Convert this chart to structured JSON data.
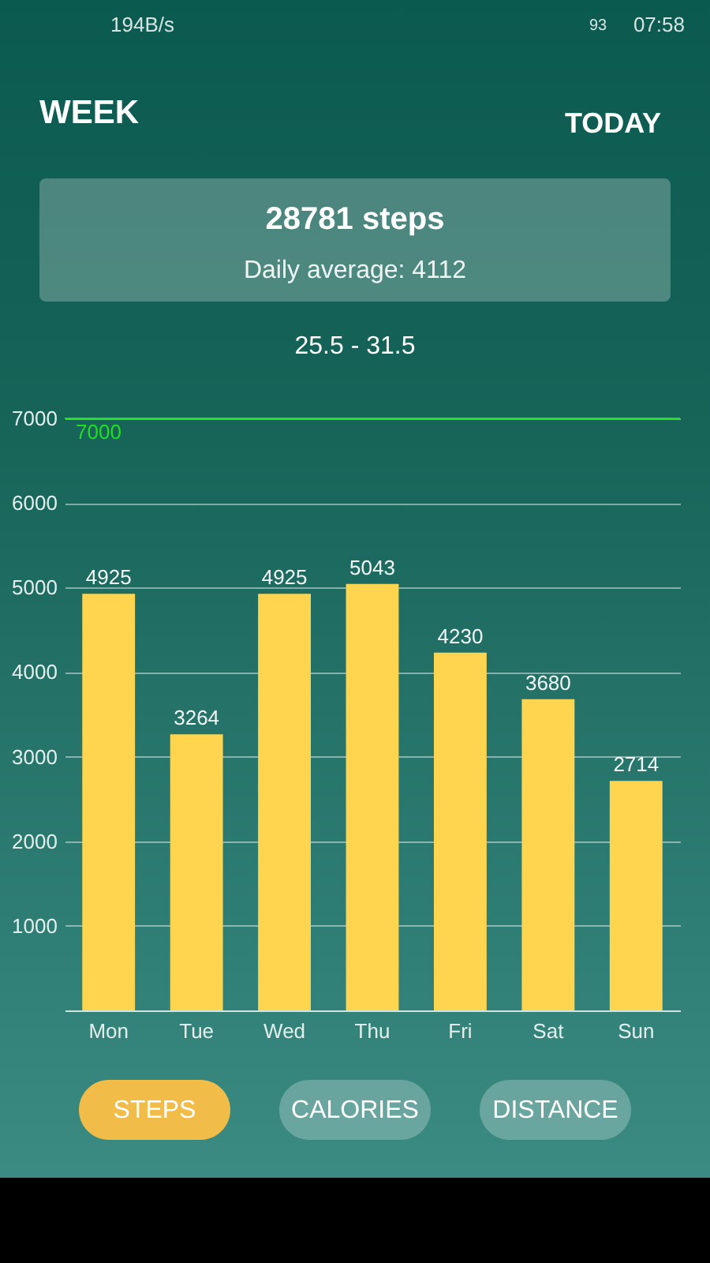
{
  "chart_data": {
    "type": "bar",
    "title": "WEEK",
    "categories": [
      "Mon",
      "Tue",
      "Wed",
      "Thu",
      "Fri",
      "Sat",
      "Sun"
    ],
    "values": [
      4925,
      3264,
      4925,
      5043,
      4230,
      3680,
      2714
    ],
    "color": "#ffd54f",
    "ylim": [
      0,
      7000
    ],
    "yticks": [
      1000,
      2000,
      3000,
      4000,
      5000,
      6000,
      7000
    ],
    "grid": "y",
    "data_labels": true,
    "ref_lines": [
      {
        "axis": "y",
        "value": 7000,
        "label": "7000",
        "color": "#22dd22"
      }
    ],
    "annotations": [
      "194B/s",
      "93",
      "07:58",
      "TODAY",
      "28781 steps",
      "Daily average: 4112",
      "25.5 - 31.5",
      "STEPS",
      "CALORIES",
      "DISTANCE"
    ]
  }
}
